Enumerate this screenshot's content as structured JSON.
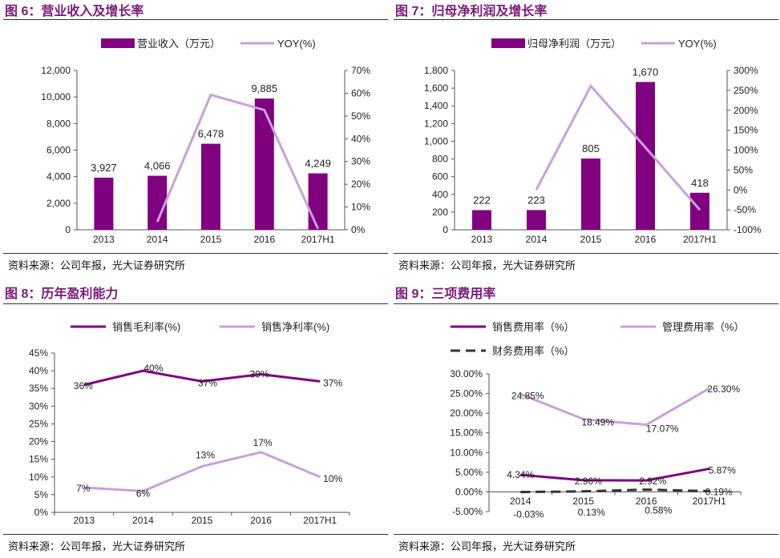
{
  "panels": [
    {
      "title": "图 6：营业收入及增长率",
      "source": "资料来源：公司年报，光大证券研究所"
    },
    {
      "title": "图 7：归母净利润及增长率",
      "source": "资料来源：公司年报，光大证券研究所"
    },
    {
      "title": "图 8：历年盈利能力",
      "source": "资料来源：公司年报，光大证券研究所"
    },
    {
      "title": "图 9：三项费用率",
      "source": "资料来源：公司年报，光大证券研究所"
    }
  ],
  "colors": {
    "dark": "#800080",
    "light": "#c9a0dc",
    "black": "#333333",
    "title": "#7a1a7a"
  },
  "chart_data": [
    {
      "type": "bar",
      "title": "图 6：营业收入及增长率",
      "categories": [
        "2013",
        "2014",
        "2015",
        "2016",
        "2017H1"
      ],
      "series": [
        {
          "name": "营业收入（万元）",
          "kind": "bar",
          "axis": "left",
          "values": [
            3927,
            4066,
            6478,
            9885,
            4249
          ],
          "labels": [
            "3,927",
            "4,066",
            "6,478",
            "9,885",
            "4,249"
          ]
        },
        {
          "name": "YOY(%)",
          "kind": "line",
          "axis": "right",
          "values": [
            null,
            3.5,
            59.3,
            52.6,
            0.5
          ]
        }
      ],
      "y_left": {
        "ylim": [
          0,
          12000
        ],
        "ticks": [
          "0",
          "2,000",
          "4,000",
          "6,000",
          "8,000",
          "10,000",
          "12,000"
        ]
      },
      "y_right": {
        "ylim": [
          0,
          70
        ],
        "ticks": [
          "0%",
          "10%",
          "20%",
          "30%",
          "40%",
          "50%",
          "60%",
          "70%"
        ]
      },
      "legend_position": "top"
    },
    {
      "type": "bar",
      "title": "图 7：归母净利润及增长率",
      "categories": [
        "2013",
        "2014",
        "2015",
        "2016",
        "2017H1"
      ],
      "series": [
        {
          "name": "归母净利润（万元）",
          "kind": "bar",
          "axis": "left",
          "values": [
            222,
            223,
            805,
            1670,
            418
          ],
          "labels": [
            "222",
            "223",
            "805",
            "1,670",
            "418"
          ]
        },
        {
          "name": "YOY(%)",
          "kind": "line",
          "axis": "right",
          "values": [
            null,
            0.5,
            261,
            107,
            -50
          ]
        }
      ],
      "y_left": {
        "ylim": [
          0,
          1800
        ],
        "ticks": [
          "0",
          "200",
          "400",
          "600",
          "800",
          "1,000",
          "1,200",
          "1,400",
          "1,600",
          "1,800"
        ]
      },
      "y_right": {
        "ylim": [
          -100,
          300
        ],
        "ticks": [
          "-100%",
          "-50%",
          "0%",
          "50%",
          "100%",
          "150%",
          "200%",
          "250%",
          "300%"
        ]
      },
      "legend_position": "top"
    },
    {
      "type": "line",
      "title": "图 8：历年盈利能力",
      "categories": [
        "2013",
        "2014",
        "2015",
        "2016",
        "2017H1"
      ],
      "series": [
        {
          "name": "销售毛利率(%)",
          "values": [
            36,
            40,
            37,
            39,
            37
          ],
          "labels": [
            "36%",
            "40%",
            "37%",
            "39%",
            "37%"
          ]
        },
        {
          "name": "销售净利率(%)",
          "values": [
            7,
            6,
            13,
            17,
            10
          ],
          "labels": [
            "7%",
            "6%",
            "13%",
            "17%",
            "10%"
          ]
        }
      ],
      "y_left": {
        "ylim": [
          0,
          45
        ],
        "ticks": [
          "0%",
          "5%",
          "10%",
          "15%",
          "20%",
          "25%",
          "30%",
          "35%",
          "40%",
          "45%"
        ]
      },
      "legend_position": "top"
    },
    {
      "type": "line",
      "title": "图 9：三项费用率",
      "categories": [
        "2014",
        "2015",
        "2016",
        "2017H1"
      ],
      "series": [
        {
          "name": "销售费用率（%）",
          "values": [
            4.34,
            2.96,
            2.92,
            5.87
          ],
          "labels": [
            "4.34%",
            "2.96%",
            "2.92%",
            "5.87%"
          ]
        },
        {
          "name": "管理费用率（%）",
          "values": [
            24.85,
            18.49,
            17.07,
            26.3
          ],
          "labels": [
            "24.85%",
            "18.49%",
            "17.07%",
            "26.30%"
          ]
        },
        {
          "name": "财务费用率（%）",
          "values": [
            -0.03,
            0.13,
            0.58,
            0.19
          ],
          "labels": [
            "-0.03%",
            "0.13%",
            "0.58%",
            "0.19%"
          ]
        }
      ],
      "y_left": {
        "ylim": [
          -5,
          30
        ],
        "ticks": [
          "-5.00%",
          "0.00%",
          "5.00%",
          "10.00%",
          "15.00%",
          "20.00%",
          "25.00%",
          "30.00%"
        ]
      },
      "legend_position": "top"
    }
  ]
}
